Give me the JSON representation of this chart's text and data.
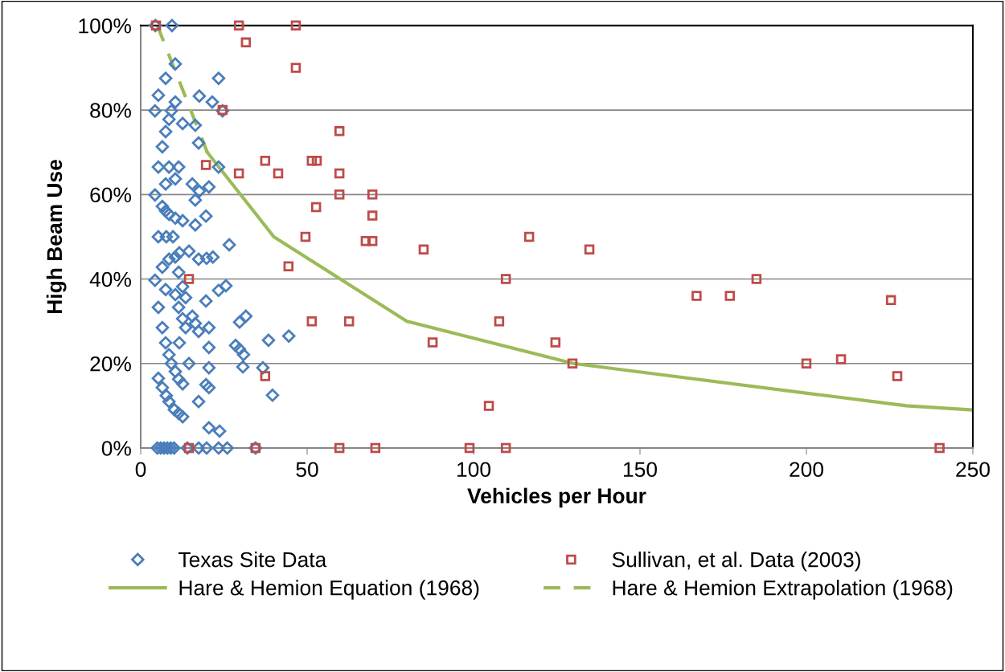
{
  "chart_data": {
    "type": "scatter",
    "xlabel": "Vehicles per Hour",
    "ylabel": "High Beam Use",
    "xlim": [
      0,
      250
    ],
    "xticks": [
      0,
      50,
      100,
      150,
      200,
      250
    ],
    "ylim": [
      0,
      100
    ],
    "yticks": [
      {
        "value": 0,
        "label": "0%"
      },
      {
        "value": 20,
        "label": "20%"
      },
      {
        "value": 40,
        "label": "40%"
      },
      {
        "value": 60,
        "label": "60%"
      },
      {
        "value": 80,
        "label": "80%"
      },
      {
        "value": 100,
        "label": "100%"
      }
    ],
    "grid": "y",
    "legend": "bottom",
    "series": [
      {
        "name": "Texas Site Data",
        "marker": "diamond",
        "color": "#4a7ebb",
        "x": [
          4.4,
          9.4,
          10.4,
          7.5,
          23.4,
          5.3,
          10.4,
          17.6,
          21.5,
          4.3,
          9.2,
          24.6,
          8.5,
          12.6,
          16.4,
          7.5,
          6.5,
          17.4,
          5.3,
          8.5,
          11.4,
          23.4,
          10.4,
          7.5,
          15.5,
          17.6,
          20.5,
          4.3,
          16.4,
          6.5,
          7.5,
          8.5,
          10.4,
          12.6,
          16.4,
          19.6,
          5.3,
          7.7,
          9.7,
          26.6,
          11.6,
          14.5,
          10.4,
          8.5,
          6.5,
          17.4,
          19.8,
          21.7,
          11.4,
          4.3,
          12.6,
          7.5,
          10.4,
          13.5,
          19.6,
          23.4,
          25.6,
          5.3,
          11.4,
          12.6,
          15.5,
          16.4,
          6.5,
          13.5,
          17.4,
          20.5,
          29.7,
          31.6,
          7.5,
          11.6,
          20.5,
          8.5,
          28.5,
          29.7,
          30.9,
          38.4,
          14.5,
          9.2,
          20.5,
          30.7,
          36.7,
          5.3,
          10.4,
          11.4,
          12.6,
          19.6,
          20.5,
          6.5,
          7.7,
          8.5,
          17.4,
          39.6,
          10.1,
          11.4,
          12.6,
          20.5,
          23.7,
          44.5,
          5,
          6,
          7,
          8,
          9,
          10,
          14,
          17.4,
          19.8,
          23.4,
          26,
          34.5
        ],
        "values": [
          100,
          100,
          90.9,
          87.5,
          87.5,
          83.5,
          81.9,
          83.3,
          81.9,
          79.8,
          79.8,
          79.8,
          77.8,
          76.8,
          76.4,
          74.9,
          71.3,
          72.2,
          66.5,
          66.5,
          66.5,
          66.5,
          63.7,
          62.5,
          62.5,
          60.8,
          61.8,
          59.9,
          58.7,
          57.2,
          56.1,
          55.3,
          54.4,
          53.8,
          52.8,
          54.9,
          50,
          50,
          50,
          48.1,
          46.2,
          46.6,
          45.2,
          44.7,
          42.8,
          44.7,
          44.9,
          45.2,
          41.6,
          39.7,
          38.2,
          37.5,
          36.3,
          35.6,
          34.8,
          37.3,
          38.4,
          33.3,
          33.3,
          30.6,
          31.2,
          29.5,
          28.5,
          28.5,
          27.6,
          28.5,
          29.8,
          31.2,
          24.9,
          24.9,
          23.8,
          22.1,
          24.3,
          23.4,
          22.1,
          25.5,
          20,
          20,
          19,
          19.2,
          19,
          16.5,
          18.1,
          16.3,
          15.2,
          15,
          14.3,
          14.3,
          12.4,
          11,
          11,
          12.5,
          9.1,
          8.2,
          7.4,
          4.8,
          4,
          26.5,
          0,
          0,
          0,
          0,
          0,
          0,
          0,
          0,
          0,
          0,
          0,
          0
        ]
      },
      {
        "name": "Sullivan, et al. Data (2003)",
        "marker": "square",
        "color": "#be4b48",
        "x": [
          4.6,
          29.5,
          31.6,
          46.6,
          46.6,
          24.6,
          59.7,
          19.6,
          29.5,
          41.3,
          37.4,
          51.4,
          52.9,
          59.7,
          59.7,
          69.6,
          52.7,
          69.6,
          49.5,
          67.6,
          69.6,
          116.7,
          85,
          134.8,
          44.4,
          109.7,
          185,
          167,
          177,
          225.4,
          51.4,
          62.6,
          107.7,
          87.7,
          124.6,
          129.7,
          200,
          210.4,
          227.3,
          104.6,
          37.4,
          14.5,
          14.5,
          34.5,
          59.7,
          70.5,
          98.8,
          109.7,
          240
        ],
        "values": [
          100,
          100,
          96,
          100,
          90,
          80,
          75,
          67,
          65,
          65,
          68,
          68,
          68,
          65,
          60,
          60,
          57,
          55,
          50,
          49,
          49,
          50,
          47,
          47,
          43,
          40,
          40,
          36,
          36,
          35,
          30,
          30,
          30,
          25,
          25,
          20,
          20,
          21,
          17,
          10,
          17,
          40,
          0,
          0,
          0,
          0,
          0,
          0,
          0
        ]
      },
      {
        "name": "Hare & Hemion Equation (1968)",
        "type": "line",
        "line_style": "solid",
        "color": "#9bbb59",
        "x": [
          20,
          40,
          80,
          130,
          230,
          250
        ],
        "values": [
          70,
          50,
          30,
          20,
          10,
          9
        ]
      },
      {
        "name": "Hare & Hemion Extrapolation (1968)",
        "type": "line",
        "line_style": "dashed",
        "color": "#9bbb59",
        "x": [
          5,
          10,
          15,
          20
        ],
        "values": [
          100,
          90,
          80,
          70
        ]
      }
    ]
  }
}
